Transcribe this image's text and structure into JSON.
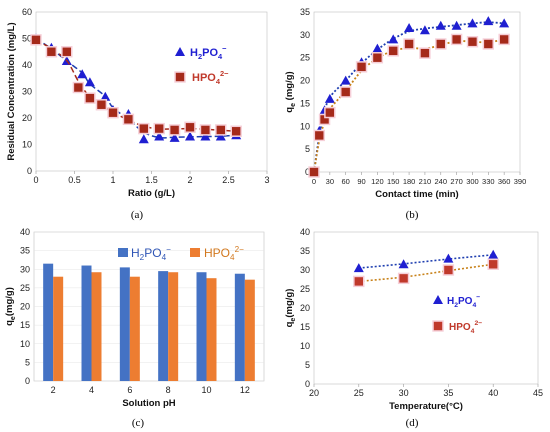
{
  "charts": [
    {
      "panel_label": "(a)",
      "type": "scatter",
      "xlabel": "Ratio (g/L)",
      "ylabel": "Residual Concentration (mg/L)",
      "xlim": [
        0,
        3
      ],
      "ylim": [
        0,
        60
      ],
      "xticks": [
        "0",
        "0.5",
        "1",
        "1.5",
        "2",
        "2.5",
        "3"
      ],
      "yticks": [
        "0",
        "10",
        "20",
        "30",
        "40",
        "50",
        "60"
      ],
      "legend_position": "right-middle",
      "series": [
        {
          "name": "H2PO4-",
          "marker": "triangle",
          "color": "#1f1fd1",
          "fit_color": "#1f3fb0",
          "x": [
            0,
            0.2,
            0.4,
            0.6,
            0.7,
            0.9,
            1.0,
            1.2,
            1.4,
            1.6,
            1.8,
            2.0,
            2.2,
            2.4,
            2.6
          ],
          "y": [
            50,
            46.5,
            41.5,
            36.5,
            33.5,
            28,
            23,
            21.5,
            12,
            13,
            12.5,
            13,
            13,
            13,
            13.5
          ]
        },
        {
          "name": "HPO42-",
          "marker": "square",
          "color": "#a52a1a",
          "fit_color": "#a52a1a",
          "x": [
            0,
            0.2,
            0.4,
            0.55,
            0.7,
            0.85,
            1.0,
            1.2,
            1.4,
            1.6,
            1.8,
            2.0,
            2.2,
            2.4,
            2.6
          ],
          "y": [
            49.5,
            45,
            45,
            31.5,
            27.5,
            25,
            22,
            19.5,
            16,
            16,
            15.5,
            16.5,
            15.5,
            15.5,
            15
          ]
        }
      ]
    },
    {
      "panel_label": "(b)",
      "type": "scatter",
      "xlabel": "Contact time (min)",
      "ylabel": "qe (mg/g)",
      "xlim": [
        0,
        390
      ],
      "ylim": [
        0,
        35
      ],
      "xticks": [
        "0",
        "30",
        "60",
        "90",
        "120",
        "150",
        "180",
        "210",
        "240",
        "270",
        "300",
        "330",
        "360",
        "390"
      ],
      "yticks": [
        "0",
        "5",
        "10",
        "15",
        "20",
        "25",
        "30",
        "35"
      ],
      "series": [
        {
          "name": "H2PO4-",
          "marker": "triangle",
          "color": "#1f1fd1",
          "fit_color": "#1f3fb0",
          "x": [
            0,
            10,
            20,
            30,
            60,
            90,
            120,
            150,
            180,
            210,
            240,
            270,
            300,
            330,
            360
          ],
          "y": [
            0,
            9,
            13.5,
            16,
            20,
            24,
            27,
            29,
            31.5,
            31,
            32,
            32,
            32.5,
            33,
            32.5
          ]
        },
        {
          "name": "HPO42-",
          "marker": "square",
          "color": "#a52a1a",
          "fit_color": "#c8821a",
          "x": [
            0,
            10,
            20,
            30,
            60,
            90,
            120,
            150,
            180,
            210,
            240,
            270,
            300,
            330,
            360
          ],
          "y": [
            0,
            8,
            11.5,
            13,
            17.5,
            23,
            25,
            26.5,
            28,
            26,
            28,
            29,
            28.5,
            28,
            29
          ]
        }
      ]
    },
    {
      "panel_label": "(c)",
      "type": "bar",
      "xlabel": "Solution pH",
      "ylabel": "qe(mg/g)",
      "ylim": [
        0,
        40
      ],
      "categories": [
        "2",
        "4",
        "6",
        "8",
        "10",
        "12"
      ],
      "yticks": [
        "0",
        "5",
        "10",
        "15",
        "20",
        "25",
        "30",
        "35",
        "40"
      ],
      "legend_position": "top-center",
      "series": [
        {
          "name": "H2PO4-",
          "color": "#4472c4",
          "values": [
            31.5,
            31,
            30.5,
            29.5,
            29.2,
            28.8
          ]
        },
        {
          "name": "HPO42-",
          "color": "#ed7d31",
          "values": [
            28,
            29.2,
            28,
            29.2,
            27.6,
            27.2
          ]
        }
      ]
    },
    {
      "panel_label": "(d)",
      "type": "scatter",
      "xlabel": "Temperature(°C)",
      "ylabel": "qe(mg/g)",
      "xlim": [
        20,
        45
      ],
      "ylim": [
        0,
        40
      ],
      "xticks": [
        "20",
        "25",
        "30",
        "35",
        "40",
        "45"
      ],
      "yticks": [
        "0",
        "5",
        "10",
        "15",
        "20",
        "25",
        "30",
        "35",
        "40"
      ],
      "legend_position": "right-middle",
      "series": [
        {
          "name": "H2PO4-",
          "marker": "triangle",
          "color": "#1f1fd1",
          "fit_color": "#1f3fb0",
          "x": [
            25,
            30,
            35,
            40
          ],
          "y": [
            30.5,
            31.5,
            33,
            34
          ]
        },
        {
          "name": "HPO42-",
          "marker": "square",
          "color": "#c0392b",
          "fit_color": "#c8821a",
          "x": [
            25,
            30,
            35,
            40
          ],
          "y": [
            27,
            27.8,
            30,
            31.5
          ]
        }
      ]
    }
  ]
}
